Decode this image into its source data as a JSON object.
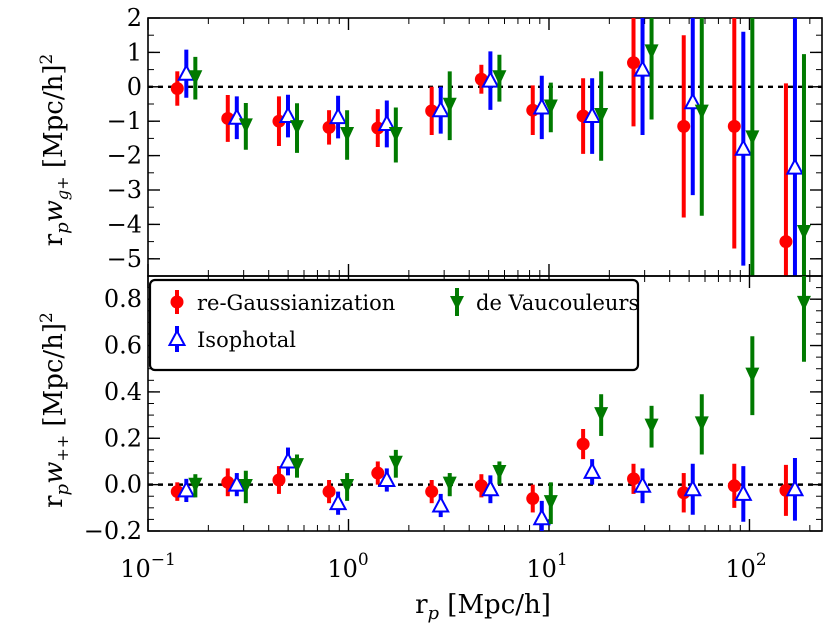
{
  "chart_data": [
    {
      "id": "top",
      "type": "scatter",
      "ylabel": "r_p w_g+ [Mpc/h]^2",
      "ylim": [
        -5.5,
        2.0
      ],
      "yticks": [
        2,
        1,
        0,
        -1,
        -2,
        -3,
        -4,
        -5
      ],
      "yticklabels": [
        "2",
        "1",
        "0",
        "−1",
        "−2",
        "−3",
        "−4",
        "−5"
      ],
      "x_base": [
        0.14,
        0.25,
        0.45,
        0.8,
        1.4,
        2.6,
        4.6,
        8.3,
        14.8,
        26.4,
        47.0,
        84.0,
        152.0
      ],
      "series": [
        {
          "name": "re-Gaussianization",
          "key": "reg",
          "values": [
            -0.05,
            -0.92,
            -1.0,
            -1.18,
            -1.2,
            -0.7,
            0.22,
            -0.68,
            -0.85,
            0.7,
            -1.15,
            -1.15,
            -4.5
          ],
          "errors": [
            0.5,
            0.68,
            0.72,
            0.5,
            0.55,
            0.7,
            0.42,
            0.72,
            1.1,
            1.85,
            2.65,
            3.55,
            4.6
          ]
        },
        {
          "name": "Isophotal",
          "key": "iso",
          "values": [
            0.38,
            -0.9,
            -0.85,
            -0.88,
            -1.08,
            -0.68,
            0.18,
            -0.6,
            -0.85,
            0.5,
            -0.45,
            -1.8,
            -2.35
          ],
          "errors": [
            0.7,
            0.62,
            0.62,
            0.62,
            0.68,
            0.68,
            0.85,
            0.92,
            1.1,
            1.9,
            2.7,
            3.4,
            4.35
          ]
        },
        {
          "name": "de Vaucouleurs",
          "key": "dev",
          "values": [
            0.25,
            -1.15,
            -1.2,
            -1.4,
            -1.4,
            -0.55,
            0.25,
            -0.6,
            -0.85,
            1.0,
            -0.75,
            -1.5,
            -4.25
          ],
          "errors": [
            0.62,
            0.68,
            0.72,
            0.72,
            0.8,
            1.0,
            0.68,
            0.72,
            1.3,
            1.95,
            3.0,
            4.4,
            5.2
          ]
        }
      ]
    },
    {
      "id": "bottom",
      "type": "scatter",
      "title": "",
      "xlabel": "r_p [Mpc/h]",
      "ylabel": "r_p w_++ [Mpc/h]^2",
      "xscale": "log",
      "xlim": [
        0.1,
        230
      ],
      "xticks": [
        0.1,
        1,
        10,
        100
      ],
      "ylim": [
        -0.2,
        0.9
      ],
      "yticks": [
        0.8,
        0.6,
        0.4,
        0.2,
        0.0,
        -0.2
      ],
      "yticklabels": [
        "0.8",
        "0.6",
        "0.4",
        "0.2",
        "0.0",
        "−0.2"
      ],
      "x_base": [
        0.14,
        0.25,
        0.45,
        0.8,
        1.4,
        2.6,
        4.6,
        8.3,
        14.8,
        26.4,
        47.0,
        84.0,
        152.0
      ],
      "legend_position": "top-left",
      "series": [
        {
          "name": "re-Gaussianization",
          "key": "reg",
          "values": [
            -0.03,
            0.01,
            0.02,
            -0.03,
            0.05,
            -0.03,
            -0.005,
            -0.06,
            0.175,
            0.025,
            -0.035,
            -0.005,
            -0.025
          ],
          "errors": [
            0.04,
            0.06,
            0.06,
            0.05,
            0.05,
            0.05,
            0.05,
            0.06,
            0.065,
            0.065,
            0.085,
            0.095,
            0.11
          ]
        },
        {
          "name": "Isophotal",
          "key": "iso",
          "values": [
            -0.025,
            0.0,
            0.1,
            -0.08,
            0.02,
            -0.09,
            -0.02,
            -0.145,
            0.055,
            -0.005,
            -0.02,
            -0.04,
            -0.02
          ],
          "errors": [
            0.05,
            0.05,
            0.06,
            0.05,
            0.05,
            0.05,
            0.06,
            0.075,
            0.055,
            0.075,
            0.11,
            0.12,
            0.135
          ]
        },
        {
          "name": "de Vaucouleurs",
          "key": "dev",
          "values": [
            -0.005,
            -0.01,
            0.08,
            -0.01,
            0.09,
            0.0,
            0.05,
            -0.08,
            0.3,
            0.25,
            0.26,
            0.47,
            0.78
          ],
          "errors": [
            0.05,
            0.07,
            0.05,
            0.06,
            0.06,
            0.05,
            0.05,
            0.09,
            0.09,
            0.09,
            0.13,
            0.17,
            0.25
          ]
        }
      ]
    }
  ],
  "legend": [
    {
      "key": "reg",
      "label": "re-Gaussianization"
    },
    {
      "key": "iso",
      "label": "Isophotal"
    },
    {
      "key": "dev",
      "label": "de Vaucouleurs"
    }
  ],
  "axis_labels": {
    "top_y": {
      "prefix": "r",
      "sub": "p",
      "w": "w",
      "wsub": "g+",
      "unit": " [Mpc/h]",
      "exp": "2"
    },
    "bottom_y": {
      "prefix": "r",
      "sub": "p",
      "w": "w",
      "wsub": "++",
      "unit": " [Mpc/h]",
      "exp": "2"
    },
    "x": {
      "prefix": "r",
      "sub": "p",
      "unit": " [Mpc/h]"
    }
  },
  "x_tick_labels": [
    {
      "base": "10",
      "exp": "−1"
    },
    {
      "base": "10",
      "exp": "0"
    },
    {
      "base": "10",
      "exp": "1"
    },
    {
      "base": "10",
      "exp": "2"
    }
  ],
  "colors": {
    "reg": "#ff0000",
    "iso": "#0000ff",
    "dev": "#007a00"
  },
  "marker_offsets": {
    "reg": 0.0,
    "iso": 0.045,
    "dev": 0.09
  }
}
